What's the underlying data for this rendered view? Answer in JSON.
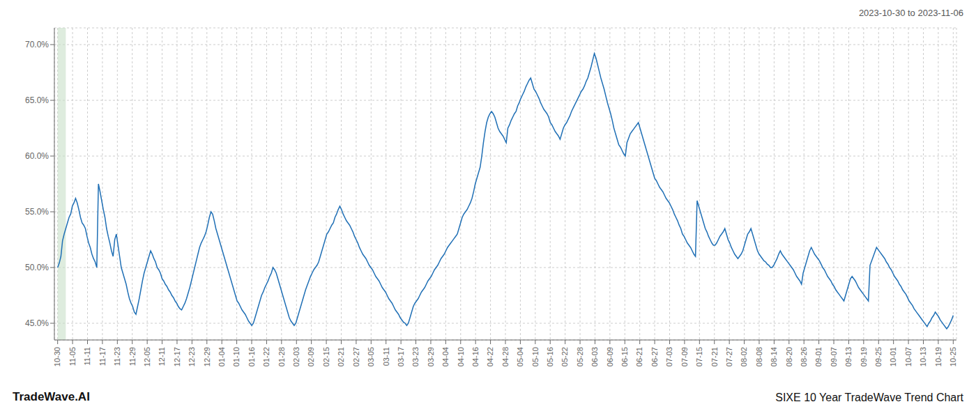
{
  "chart_data": {
    "type": "line",
    "title": "SIXE 10 Year TradeWave Trend Chart",
    "subtitle": "2023-10-30 to 2023-11-06",
    "annotations": [
      "TradeWave.AI"
    ],
    "color": "#1f6fb5",
    "grid": true,
    "highlight": {
      "x": [
        0,
        5
      ],
      "color": "#c8dfc8"
    },
    "ylim": [
      0.435,
      0.715
    ],
    "yticks": [
      {
        "value": 0.45,
        "label": "45.0%"
      },
      {
        "value": 0.5,
        "label": "50.0%"
      },
      {
        "value": 0.55,
        "label": "55.0%"
      },
      {
        "value": 0.6,
        "label": "60.0%"
      },
      {
        "value": 0.65,
        "label": "65.0%"
      },
      {
        "value": 0.7,
        "label": "70.0%"
      }
    ],
    "xlim": [
      -2,
      551
    ],
    "xticks": [
      {
        "value": 0,
        "label": "10-30"
      },
      {
        "value": 9.15,
        "label": "11-05"
      },
      {
        "value": 18.3,
        "label": "11-11"
      },
      {
        "value": 27.45,
        "label": "11-17"
      },
      {
        "value": 36.6,
        "label": "11-23"
      },
      {
        "value": 45.75,
        "label": "11-29"
      },
      {
        "value": 54.9,
        "label": "12-05"
      },
      {
        "value": 64.05,
        "label": "12-11"
      },
      {
        "value": 73.2,
        "label": "12-17"
      },
      {
        "value": 82.35,
        "label": "12-23"
      },
      {
        "value": 91.5,
        "label": "12-29"
      },
      {
        "value": 100.65,
        "label": "01-04"
      },
      {
        "value": 109.8,
        "label": "01-10"
      },
      {
        "value": 118.95,
        "label": "01-16"
      },
      {
        "value": 128.1,
        "label": "01-22"
      },
      {
        "value": 137.25,
        "label": "01-28"
      },
      {
        "value": 146.4,
        "label": "02-03"
      },
      {
        "value": 155.55,
        "label": "02-09"
      },
      {
        "value": 164.7,
        "label": "02-15"
      },
      {
        "value": 173.85,
        "label": "02-21"
      },
      {
        "value": 183,
        "label": "02-27"
      },
      {
        "value": 192.15,
        "label": "03-05"
      },
      {
        "value": 201.3,
        "label": "03-11"
      },
      {
        "value": 210.45,
        "label": "03-17"
      },
      {
        "value": 219.6,
        "label": "03-23"
      },
      {
        "value": 228.75,
        "label": "03-29"
      },
      {
        "value": 237.9,
        "label": "04-04"
      },
      {
        "value": 247.05,
        "label": "04-10"
      },
      {
        "value": 256.2,
        "label": "04-16"
      },
      {
        "value": 265.35,
        "label": "04-22"
      },
      {
        "value": 274.5,
        "label": "04-28"
      },
      {
        "value": 283.65,
        "label": "05-04"
      },
      {
        "value": 292.8,
        "label": "05-10"
      },
      {
        "value": 301.95,
        "label": "05-16"
      },
      {
        "value": 311.1,
        "label": "05-22"
      },
      {
        "value": 320.25,
        "label": "05-28"
      },
      {
        "value": 329.4,
        "label": "06-03"
      },
      {
        "value": 338.55,
        "label": "06-09"
      },
      {
        "value": 347.7,
        "label": "06-15"
      },
      {
        "value": 356.85,
        "label": "06-21"
      },
      {
        "value": 366,
        "label": "06-27"
      },
      {
        "value": 375.15,
        "label": "07-03"
      },
      {
        "value": 384.3,
        "label": "07-09"
      },
      {
        "value": 393.45,
        "label": "07-15"
      },
      {
        "value": 402.6,
        "label": "07-21"
      },
      {
        "value": 411.75,
        "label": "07-27"
      },
      {
        "value": 420.9,
        "label": "08-02"
      },
      {
        "value": 430.05,
        "label": "08-08"
      },
      {
        "value": 439.2,
        "label": "08-14"
      },
      {
        "value": 448.35,
        "label": "08-20"
      },
      {
        "value": 457.5,
        "label": "08-26"
      },
      {
        "value": 466.65,
        "label": "09-01"
      },
      {
        "value": 475.8,
        "label": "09-07"
      },
      {
        "value": 484.95,
        "label": "09-13"
      },
      {
        "value": 494.1,
        "label": "09-19"
      },
      {
        "value": 503.25,
        "label": "09-25"
      },
      {
        "value": 512.4,
        "label": "10-01"
      },
      {
        "value": 521.55,
        "label": "10-07"
      },
      {
        "value": 530.7,
        "label": "10-13"
      },
      {
        "value": 539.85,
        "label": "10-19"
      },
      {
        "value": 549,
        "label": "10-25"
      }
    ],
    "x": [
      0,
      1,
      2,
      3,
      4,
      5,
      6,
      7,
      8,
      9,
      10,
      11,
      12,
      13,
      14,
      15,
      16,
      17,
      18,
      19,
      20,
      21,
      22,
      23,
      24,
      25,
      26,
      27,
      28,
      29,
      30,
      31,
      32,
      33,
      34,
      35,
      36,
      37,
      38,
      39,
      40,
      41,
      42,
      43,
      44,
      45,
      46,
      47,
      48,
      49,
      50,
      51,
      52,
      53,
      54,
      55,
      56,
      57,
      58,
      59,
      60,
      61,
      62,
      63,
      64,
      65,
      66,
      67,
      68,
      69,
      70,
      71,
      72,
      73,
      74,
      75,
      76,
      77,
      78,
      79,
      80,
      81,
      82,
      83,
      84,
      85,
      86,
      87,
      88,
      89,
      90,
      91,
      92,
      93,
      94,
      95,
      96,
      97,
      98,
      99,
      100,
      101,
      102,
      103,
      104,
      105,
      106,
      107,
      108,
      109,
      110,
      111,
      112,
      113,
      114,
      115,
      116,
      117,
      118,
      119,
      120,
      121,
      122,
      123,
      124,
      125,
      126,
      127,
      128,
      129,
      130,
      131,
      132,
      133,
      134,
      135,
      136,
      137,
      138,
      139,
      140,
      141,
      142,
      143,
      144,
      145,
      146,
      147,
      148,
      149,
      150,
      151,
      152,
      153,
      154,
      155,
      156,
      157,
      158,
      159,
      160,
      161,
      162,
      163,
      164,
      165,
      166,
      167,
      168,
      169,
      170,
      171,
      172,
      173,
      174,
      175,
      176,
      177,
      178,
      179,
      180,
      181,
      182,
      183,
      184,
      185,
      186,
      187,
      188,
      189,
      190,
      191,
      192,
      193,
      194,
      195,
      196,
      197,
      198,
      199,
      200,
      201,
      202,
      203,
      204,
      205,
      206,
      207,
      208,
      209,
      210,
      211,
      212,
      213,
      214,
      215,
      216,
      217,
      218,
      219,
      220,
      221,
      222,
      223,
      224,
      225,
      226,
      227,
      228,
      229,
      230,
      231,
      232,
      233,
      234,
      235,
      236,
      237,
      238,
      239,
      240,
      241,
      242,
      243,
      244,
      245,
      246,
      247,
      248,
      249,
      250,
      251,
      252,
      253,
      254,
      255,
      256,
      257,
      258,
      259,
      260,
      261,
      262,
      263,
      264,
      265,
      266,
      267,
      268,
      269,
      270,
      271,
      272,
      273,
      274,
      275,
      276,
      277,
      278,
      279,
      280,
      281,
      282,
      283,
      284,
      285,
      286,
      287,
      288,
      289,
      290,
      291,
      292,
      293,
      294,
      295,
      296,
      297,
      298,
      299,
      300,
      301,
      302,
      303,
      304,
      305,
      306,
      307,
      308,
      309,
      310,
      311,
      312,
      313,
      314,
      315,
      316,
      317,
      318,
      319,
      320,
      321,
      322,
      323,
      324,
      325,
      326,
      327,
      328,
      329,
      330,
      331,
      332,
      333,
      334,
      335,
      336,
      337,
      338,
      339,
      340,
      341,
      342,
      343,
      344,
      345,
      346,
      347,
      348,
      349,
      350,
      351,
      352,
      353,
      354,
      355,
      356,
      357,
      358,
      359,
      360,
      361,
      362,
      363,
      364,
      365,
      366,
      367,
      368,
      369,
      370,
      371,
      372,
      373,
      374,
      375,
      376,
      377,
      378,
      379,
      380,
      381,
      382,
      383,
      384,
      385,
      386,
      387,
      388,
      389,
      390,
      391,
      392,
      393,
      394,
      395,
      396,
      397,
      398,
      399,
      400,
      401,
      402,
      403,
      404,
      405,
      406,
      407,
      408,
      409,
      410,
      411,
      412,
      413,
      414,
      415,
      416,
      417,
      418,
      419,
      420,
      421,
      422,
      423,
      424,
      425,
      426,
      427,
      428,
      429,
      430,
      431,
      432,
      433,
      434,
      435,
      436,
      437,
      438,
      439,
      440,
      441,
      442,
      443,
      444,
      445,
      446,
      447,
      448,
      449,
      450,
      451,
      452,
      453,
      454,
      455,
      456,
      457,
      458,
      459,
      460,
      461,
      462,
      463,
      464,
      465,
      466,
      467,
      468,
      469,
      470,
      471,
      472,
      473,
      474,
      475,
      476,
      477,
      478,
      479,
      480,
      481,
      482,
      483,
      484,
      485,
      486,
      487,
      488,
      489,
      490,
      491,
      492,
      493,
      494,
      495,
      496,
      497,
      498,
      499,
      500,
      501,
      502,
      503,
      504,
      505,
      506,
      507,
      508,
      509,
      510,
      511,
      512,
      513,
      514,
      515,
      516,
      517,
      518,
      519,
      520,
      521,
      522,
      523,
      524,
      525,
      526,
      527,
      528,
      529,
      530,
      531,
      532,
      533,
      534,
      535,
      536,
      537,
      538,
      539,
      540,
      541,
      542,
      543,
      544,
      545,
      546,
      547,
      548,
      549
    ],
    "values": [
      0.5,
      0.504,
      0.51,
      0.524,
      0.53,
      0.535,
      0.54,
      0.545,
      0.548,
      0.555,
      0.558,
      0.562,
      0.558,
      0.552,
      0.545,
      0.54,
      0.538,
      0.535,
      0.528,
      0.522,
      0.518,
      0.512,
      0.508,
      0.505,
      0.5,
      0.575,
      0.568,
      0.56,
      0.552,
      0.545,
      0.535,
      0.528,
      0.522,
      0.515,
      0.51,
      0.525,
      0.53,
      0.52,
      0.51,
      0.5,
      0.495,
      0.49,
      0.485,
      0.478,
      0.472,
      0.468,
      0.465,
      0.46,
      0.458,
      0.465,
      0.472,
      0.48,
      0.488,
      0.495,
      0.5,
      0.505,
      0.51,
      0.515,
      0.512,
      0.508,
      0.505,
      0.5,
      0.498,
      0.495,
      0.49,
      0.488,
      0.485,
      0.483,
      0.48,
      0.478,
      0.475,
      0.473,
      0.47,
      0.468,
      0.465,
      0.463,
      0.462,
      0.465,
      0.468,
      0.472,
      0.477,
      0.482,
      0.488,
      0.494,
      0.5,
      0.506,
      0.512,
      0.518,
      0.522,
      0.525,
      0.528,
      0.532,
      0.538,
      0.545,
      0.55,
      0.548,
      0.542,
      0.535,
      0.53,
      0.525,
      0.52,
      0.515,
      0.51,
      0.505,
      0.5,
      0.495,
      0.49,
      0.485,
      0.48,
      0.475,
      0.47,
      0.468,
      0.465,
      0.462,
      0.46,
      0.458,
      0.455,
      0.452,
      0.45,
      0.448,
      0.45,
      0.455,
      0.46,
      0.465,
      0.47,
      0.475,
      0.478,
      0.482,
      0.485,
      0.488,
      0.492,
      0.495,
      0.5,
      0.498,
      0.495,
      0.49,
      0.485,
      0.48,
      0.475,
      0.47,
      0.465,
      0.46,
      0.455,
      0.452,
      0.45,
      0.448,
      0.45,
      0.455,
      0.46,
      0.465,
      0.47,
      0.475,
      0.48,
      0.484,
      0.488,
      0.492,
      0.495,
      0.498,
      0.5,
      0.502,
      0.505,
      0.51,
      0.515,
      0.52,
      0.525,
      0.53,
      0.532,
      0.535,
      0.538,
      0.54,
      0.545,
      0.548,
      0.552,
      0.555,
      0.552,
      0.548,
      0.545,
      0.542,
      0.54,
      0.538,
      0.535,
      0.532,
      0.528,
      0.525,
      0.522,
      0.518,
      0.515,
      0.512,
      0.51,
      0.508,
      0.505,
      0.502,
      0.5,
      0.498,
      0.495,
      0.492,
      0.49,
      0.488,
      0.485,
      0.482,
      0.48,
      0.478,
      0.475,
      0.472,
      0.47,
      0.468,
      0.465,
      0.462,
      0.46,
      0.458,
      0.455,
      0.453,
      0.451,
      0.45,
      0.448,
      0.45,
      0.455,
      0.46,
      0.465,
      0.468,
      0.47,
      0.472,
      0.475,
      0.478,
      0.48,
      0.482,
      0.485,
      0.488,
      0.49,
      0.492,
      0.495,
      0.498,
      0.5,
      0.502,
      0.505,
      0.508,
      0.51,
      0.512,
      0.515,
      0.518,
      0.52,
      0.522,
      0.524,
      0.526,
      0.528,
      0.53,
      0.535,
      0.54,
      0.545,
      0.548,
      0.55,
      0.552,
      0.555,
      0.558,
      0.562,
      0.568,
      0.575,
      0.58,
      0.585,
      0.59,
      0.6,
      0.612,
      0.622,
      0.63,
      0.635,
      0.638,
      0.64,
      0.638,
      0.635,
      0.63,
      0.625,
      0.622,
      0.62,
      0.618,
      0.615,
      0.612,
      0.625,
      0.628,
      0.632,
      0.635,
      0.638,
      0.64,
      0.645,
      0.648,
      0.652,
      0.655,
      0.658,
      0.662,
      0.665,
      0.668,
      0.67,
      0.665,
      0.66,
      0.658,
      0.655,
      0.652,
      0.648,
      0.645,
      0.642,
      0.64,
      0.638,
      0.635,
      0.63,
      0.628,
      0.625,
      0.622,
      0.62,
      0.618,
      0.615,
      0.62,
      0.625,
      0.628,
      0.63,
      0.633,
      0.636,
      0.64,
      0.643,
      0.646,
      0.649,
      0.652,
      0.655,
      0.658,
      0.66,
      0.663,
      0.667,
      0.67,
      0.675,
      0.68,
      0.686,
      0.692,
      0.688,
      0.682,
      0.676,
      0.67,
      0.665,
      0.66,
      0.654,
      0.648,
      0.643,
      0.638,
      0.632,
      0.625,
      0.62,
      0.615,
      0.61,
      0.608,
      0.605,
      0.602,
      0.6,
      0.612,
      0.616,
      0.62,
      0.622,
      0.624,
      0.626,
      0.628,
      0.63,
      0.625,
      0.62,
      0.615,
      0.61,
      0.605,
      0.6,
      0.595,
      0.59,
      0.585,
      0.58,
      0.578,
      0.575,
      0.572,
      0.57,
      0.568,
      0.565,
      0.562,
      0.56,
      0.558,
      0.555,
      0.552,
      0.548,
      0.545,
      0.542,
      0.538,
      0.535,
      0.53,
      0.528,
      0.525,
      0.522,
      0.52,
      0.518,
      0.515,
      0.512,
      0.51,
      0.56,
      0.555,
      0.55,
      0.545,
      0.54,
      0.535,
      0.532,
      0.528,
      0.525,
      0.522,
      0.52,
      0.52,
      0.522,
      0.525,
      0.528,
      0.53,
      0.532,
      0.535,
      0.53,
      0.525,
      0.522,
      0.518,
      0.515,
      0.512,
      0.51,
      0.508,
      0.51,
      0.512,
      0.515,
      0.52,
      0.525,
      0.53,
      0.532,
      0.535,
      0.53,
      0.525,
      0.52,
      0.515,
      0.512,
      0.51,
      0.508,
      0.506,
      0.505,
      0.503,
      0.502,
      0.5,
      0.5,
      0.502,
      0.505,
      0.508,
      0.512,
      0.515,
      0.512,
      0.51,
      0.508,
      0.506,
      0.504,
      0.502,
      0.5,
      0.498,
      0.495,
      0.492,
      0.49,
      0.488,
      0.485,
      0.495,
      0.5,
      0.505,
      0.51,
      0.515,
      0.518,
      0.515,
      0.512,
      0.51,
      0.508,
      0.506,
      0.503,
      0.5,
      0.498,
      0.495,
      0.492,
      0.49,
      0.488,
      0.485,
      0.483,
      0.48,
      0.478,
      0.476,
      0.474,
      0.472,
      0.47,
      0.475,
      0.48,
      0.485,
      0.49,
      0.492,
      0.49,
      0.488,
      0.485,
      0.482,
      0.48,
      0.478,
      0.476,
      0.474,
      0.472,
      0.47,
      0.502,
      0.506,
      0.51,
      0.514,
      0.518,
      0.516,
      0.514,
      0.512,
      0.51,
      0.508,
      0.505,
      0.503,
      0.5,
      0.498,
      0.495,
      0.492,
      0.49,
      0.488,
      0.485,
      0.483,
      0.48,
      0.478,
      0.476,
      0.473,
      0.47,
      0.468,
      0.466,
      0.463,
      0.461,
      0.459,
      0.457,
      0.455,
      0.453,
      0.451,
      0.449,
      0.447,
      0.45,
      0.452,
      0.455,
      0.457,
      0.46,
      0.458,
      0.456,
      0.453,
      0.451,
      0.449,
      0.447,
      0.445,
      0.447,
      0.45,
      0.453,
      0.457
    ]
  }
}
